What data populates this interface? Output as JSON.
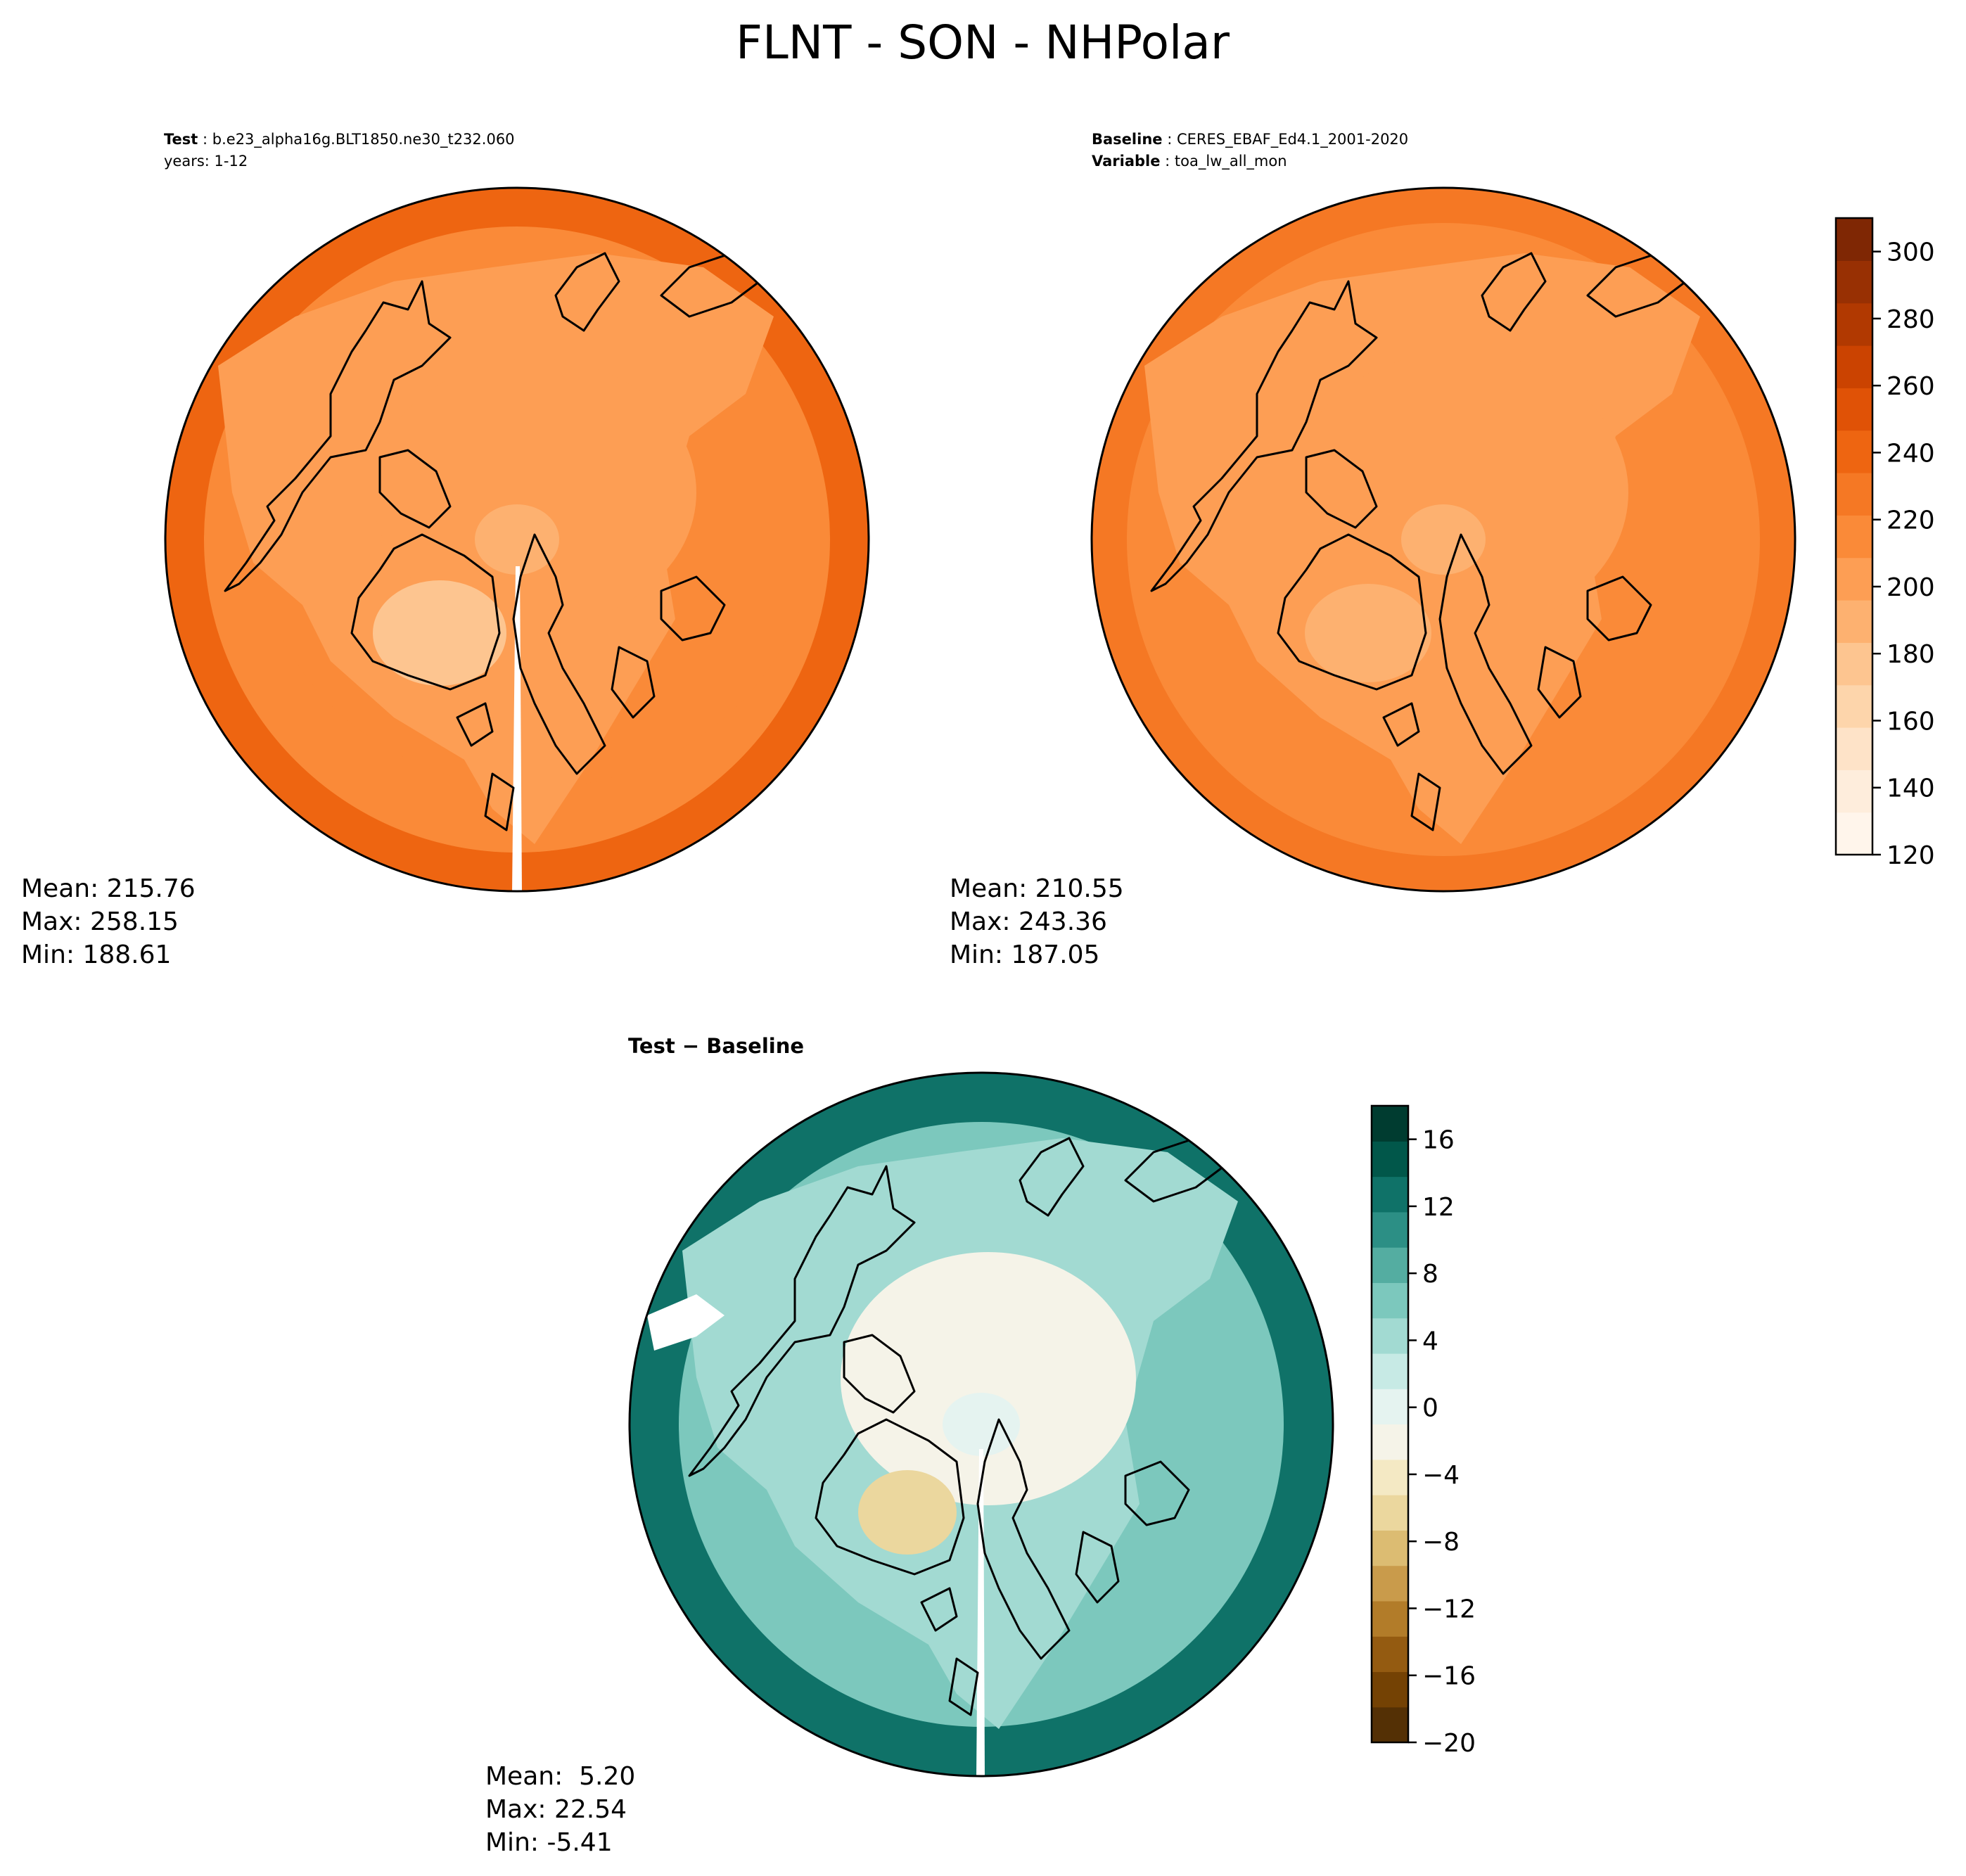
{
  "figure": {
    "title": "FLNT - SON - NHPolar"
  },
  "colors": {
    "land_outline": "#000000",
    "oranges": [
      "#fff5eb",
      "#feeddc",
      "#fee3c8",
      "#fdd5ab",
      "#fdc590",
      "#fdb170",
      "#fd9e54",
      "#fa8a38",
      "#f57824",
      "#ee6511",
      "#e05206",
      "#cb4301",
      "#b13901",
      "#983003",
      "#7f2704"
    ],
    "brbg": [
      "#543005",
      "#744204",
      "#945b11",
      "#b27c29",
      "#c99b4b",
      "#dcbc72",
      "#ebd79e",
      "#f4e9c4",
      "#f5f3e8",
      "#e5f3f0",
      "#c7eae5",
      "#a2dad2",
      "#7cc8bd",
      "#54ada1",
      "#2c8f85",
      "#0f7268",
      "#01574a",
      "#003c30"
    ]
  },
  "chart_data": [
    {
      "type": "heatmap",
      "panel": "test",
      "subtitle_bold": "Test",
      "subtitle_text": "b.e23_alpha16g.BLT1850.ne30_t232.060",
      "subtitle_line2": "years: 1-12",
      "stats": {
        "mean": "Mean: 215.76",
        "max": "Max: 258.15",
        "min": "Min: 188.61"
      },
      "levels": [
        120,
        310
      ],
      "field": {
        "pole": 190,
        "greenland": 180,
        "arctic": 196,
        "land": 205,
        "ocean_mid": 220,
        "ocean_edge": 245
      }
    },
    {
      "type": "heatmap",
      "panel": "baseline",
      "subtitle_bold": "Baseline",
      "subtitle_text": "CERES_EBAF_Ed4.1_2001-2020",
      "subtitle_bold2": "Variable",
      "subtitle_text2": "toa_lw_all_mon",
      "stats": {
        "mean": "Mean: 210.55",
        "max": "Max: 243.36",
        "min": "Min: 187.05"
      },
      "colorbar": {
        "ticks": [
          120,
          140,
          160,
          180,
          200,
          220,
          240,
          260,
          280,
          300
        ],
        "tick_labels": [
          "120",
          "140",
          "160",
          "180",
          "200",
          "220",
          "240",
          "260",
          "280",
          "300"
        ],
        "vmin": 120,
        "vmax": 310
      },
      "field": {
        "pole": 192,
        "greenland": 185,
        "arctic": 197,
        "land": 204,
        "ocean_mid": 212,
        "ocean_edge": 232
      }
    },
    {
      "type": "heatmap",
      "panel": "difference",
      "subtitle_bold": "Test − Baseline",
      "stats": {
        "mean": "Mean:  5.20",
        "max": "Max: 22.54",
        "min": "Min: -5.41"
      },
      "colorbar": {
        "ticks": [
          -20,
          -16,
          -12,
          -8,
          -4,
          0,
          4,
          8,
          12,
          16
        ],
        "tick_labels": [
          "−20",
          "−16",
          "−12",
          "−8",
          "−4",
          "0",
          "4",
          "8",
          "12",
          "16"
        ],
        "vmin": -20,
        "vmax": 18
      },
      "field": {
        "pole": -1,
        "greenland": -6,
        "arctic": -2,
        "land": 4,
        "ocean_mid": 6,
        "ocean_edge": 12
      }
    }
  ]
}
